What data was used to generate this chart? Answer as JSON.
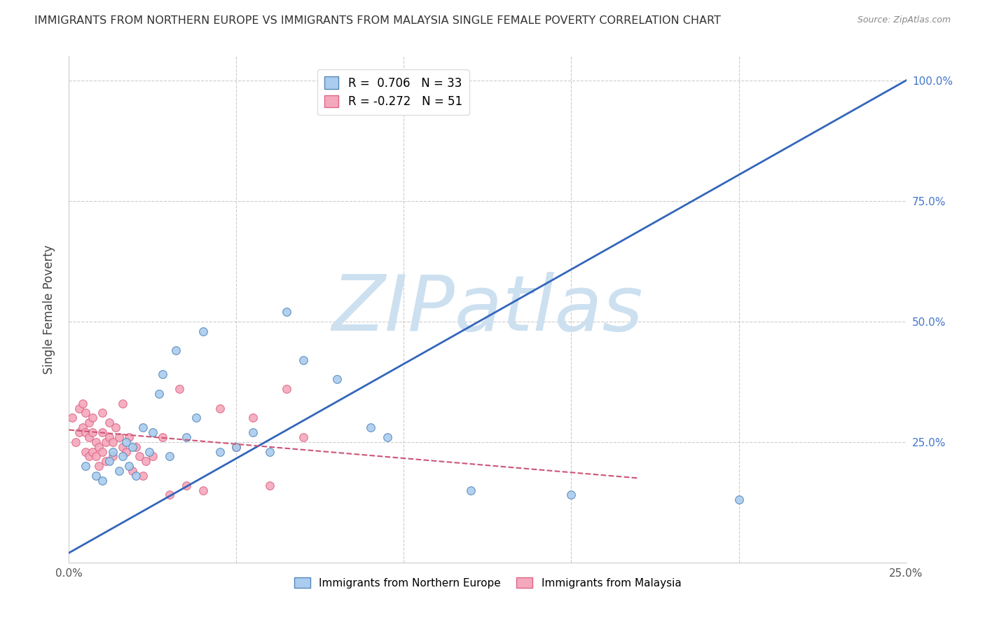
{
  "title": "IMMIGRANTS FROM NORTHERN EUROPE VS IMMIGRANTS FROM MALAYSIA SINGLE FEMALE POVERTY CORRELATION CHART",
  "source": "Source: ZipAtlas.com",
  "ylabel": "Single Female Poverty",
  "legend1_label": "R =  0.706   N = 33",
  "legend2_label": "R = -0.272   N = 51",
  "blue_line_color": "#3366bb",
  "pink_line_color": "#cc5577",
  "watermark": "ZIPatlas",
  "watermark_color": "#cce0f0",
  "background_color": "#ffffff",
  "grid_color": "#cccccc",
  "blue_scatter_color": "#aaccee",
  "pink_scatter_color": "#f4a8bb",
  "blue_edge_color": "#5588bb",
  "pink_edge_color": "#dd6688",
  "blue_x": [
    0.005,
    0.008,
    0.01,
    0.012,
    0.013,
    0.015,
    0.016,
    0.017,
    0.018,
    0.019,
    0.02,
    0.022,
    0.024,
    0.025,
    0.027,
    0.028,
    0.03,
    0.032,
    0.035,
    0.038,
    0.04,
    0.045,
    0.05,
    0.055,
    0.06,
    0.065,
    0.07,
    0.08,
    0.09,
    0.095,
    0.12,
    0.15,
    0.2
  ],
  "blue_y": [
    0.2,
    0.18,
    0.17,
    0.21,
    0.23,
    0.19,
    0.22,
    0.25,
    0.2,
    0.24,
    0.18,
    0.28,
    0.23,
    0.27,
    0.35,
    0.39,
    0.22,
    0.44,
    0.26,
    0.3,
    0.48,
    0.23,
    0.24,
    0.27,
    0.23,
    0.52,
    0.42,
    0.38,
    0.28,
    0.26,
    0.15,
    0.14,
    0.13
  ],
  "pink_x": [
    0.001,
    0.002,
    0.003,
    0.003,
    0.004,
    0.004,
    0.005,
    0.005,
    0.005,
    0.006,
    0.006,
    0.006,
    0.007,
    0.007,
    0.007,
    0.008,
    0.008,
    0.009,
    0.009,
    0.01,
    0.01,
    0.01,
    0.011,
    0.011,
    0.012,
    0.012,
    0.013,
    0.013,
    0.014,
    0.015,
    0.016,
    0.016,
    0.017,
    0.018,
    0.019,
    0.02,
    0.021,
    0.022,
    0.023,
    0.025,
    0.028,
    0.03,
    0.033,
    0.035,
    0.04,
    0.045,
    0.05,
    0.055,
    0.06,
    0.065,
    0.07
  ],
  "pink_y": [
    0.3,
    0.25,
    0.32,
    0.27,
    0.28,
    0.33,
    0.23,
    0.27,
    0.31,
    0.22,
    0.26,
    0.29,
    0.23,
    0.27,
    0.3,
    0.22,
    0.25,
    0.2,
    0.24,
    0.23,
    0.27,
    0.31,
    0.25,
    0.21,
    0.26,
    0.29,
    0.22,
    0.25,
    0.28,
    0.26,
    0.24,
    0.33,
    0.23,
    0.26,
    0.19,
    0.24,
    0.22,
    0.18,
    0.21,
    0.22,
    0.26,
    0.14,
    0.36,
    0.16,
    0.15,
    0.32,
    0.24,
    0.3,
    0.16,
    0.36,
    0.26
  ],
  "blue_line_x": [
    0.0,
    0.25
  ],
  "blue_line_y": [
    0.02,
    1.0
  ],
  "pink_line_x": [
    0.0,
    0.17
  ],
  "pink_line_y": [
    0.275,
    0.175
  ],
  "marker_size": 70,
  "xlim": [
    0.0,
    0.25
  ],
  "ylim": [
    0.0,
    1.05
  ],
  "ytick_right_color": "#4477cc"
}
